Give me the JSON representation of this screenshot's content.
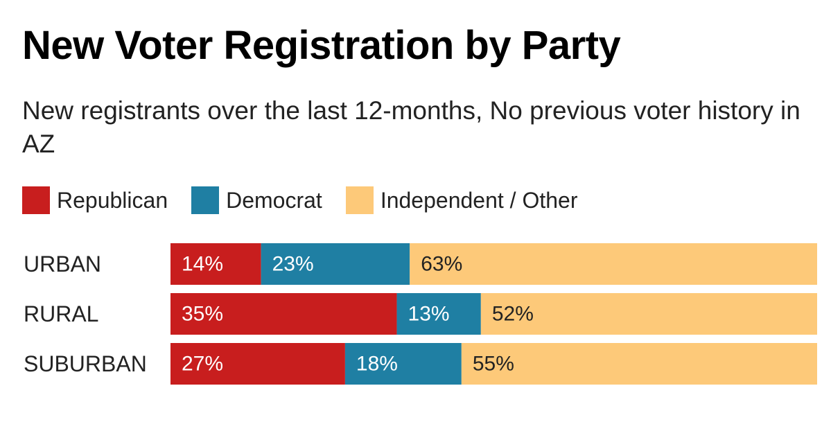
{
  "title": "New Voter Registration by Party",
  "subtitle": "New registrants over the last 12-months, No previous voter history in AZ",
  "chart_data": {
    "type": "bar",
    "orientation": "horizontal",
    "stacked": true,
    "title": "New Voter Registration by Party",
    "subtitle": "New registrants over the last 12-months, No previous voter history in AZ",
    "categories": [
      "URBAN",
      "RURAL",
      "SUBURBAN"
    ],
    "series": [
      {
        "name": "Republican",
        "color": "#c81e1e",
        "values": [
          14,
          35,
          27
        ],
        "labels": [
          "14%",
          "35%",
          "27%"
        ]
      },
      {
        "name": "Democrat",
        "color": "#1f7fa3",
        "values": [
          23,
          13,
          18
        ],
        "labels": [
          "23%",
          "13%",
          "18%"
        ]
      },
      {
        "name": "Independent / Other",
        "color": "#fdc979",
        "values": [
          63,
          52,
          55
        ],
        "labels": [
          "63%",
          "52%",
          "55%"
        ]
      }
    ],
    "xlim": [
      0,
      100
    ],
    "xlabel": "",
    "ylabel": "",
    "legend": "top-left",
    "grid": false
  }
}
